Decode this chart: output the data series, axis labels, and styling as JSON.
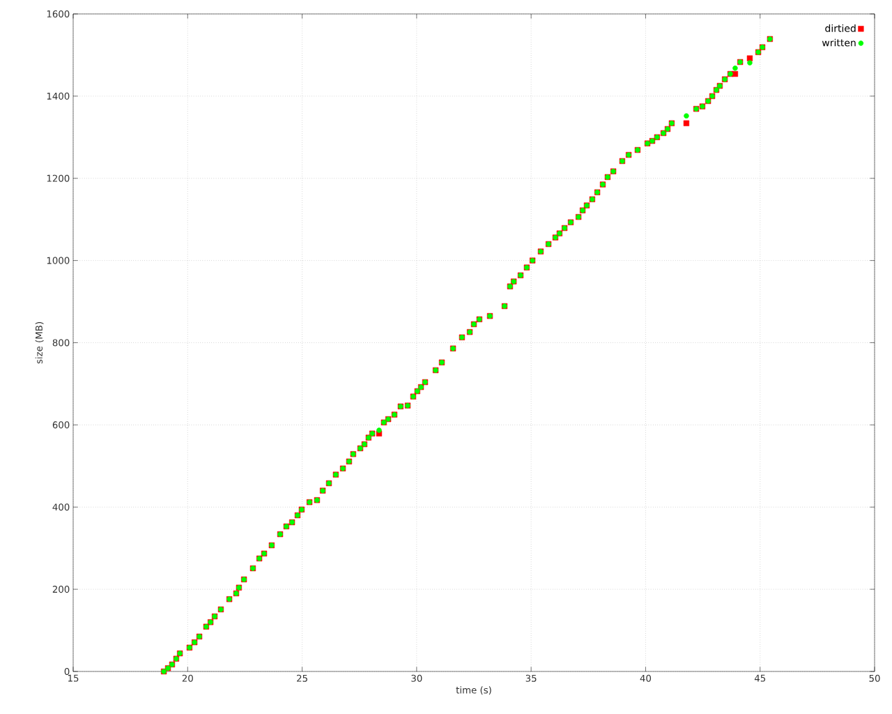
{
  "chart_data": {
    "type": "scatter",
    "xlabel": "time (s)",
    "ylabel": "size (MB)",
    "xlim": [
      15,
      50
    ],
    "ylim": [
      0,
      1600
    ],
    "xticks": [
      15,
      20,
      25,
      30,
      35,
      40,
      45,
      50
    ],
    "yticks": [
      0,
      200,
      400,
      600,
      800,
      1000,
      1200,
      1400,
      1600
    ],
    "grid": true,
    "legend": "top right",
    "x": [
      18.96,
      19.14,
      19.32,
      19.5,
      19.66,
      20.08,
      20.3,
      20.51,
      20.81,
      21.0,
      21.18,
      21.45,
      21.82,
      22.12,
      22.24,
      22.46,
      22.85,
      23.13,
      23.34,
      23.67,
      24.04,
      24.31,
      24.56,
      24.8,
      24.98,
      25.32,
      25.65,
      25.9,
      26.17,
      26.47,
      26.78,
      27.05,
      27.23,
      27.54,
      27.72,
      27.9,
      28.06,
      28.36,
      28.57,
      28.76,
      29.03,
      29.3,
      29.61,
      29.85,
      30.03,
      30.19,
      30.37,
      30.83,
      31.1,
      31.59,
      31.98,
      32.32,
      32.5,
      32.74,
      33.2,
      33.84,
      34.08,
      34.24,
      34.54,
      34.81,
      35.06,
      35.42,
      35.76,
      36.06,
      36.24,
      36.46,
      36.73,
      37.07,
      37.25,
      37.43,
      37.67,
      37.89,
      38.13,
      38.34,
      38.59,
      38.98,
      39.26,
      39.65,
      40.08,
      40.29,
      40.5,
      40.78,
      40.96,
      41.14,
      41.78,
      42.21,
      42.48,
      42.73,
      42.91,
      43.09,
      43.24,
      43.46,
      43.7,
      43.91,
      44.13,
      44.55,
      44.92,
      45.1,
      45.43
    ],
    "series": [
      {
        "name": "dirtied",
        "color": "#ff0000",
        "marker": "square",
        "values": [
          0,
          8,
          17,
          31,
          44,
          58,
          71,
          85,
          109,
          120,
          134,
          151,
          176,
          190,
          204,
          224,
          251,
          275,
          287,
          307,
          334,
          353,
          363,
          380,
          394,
          412,
          417,
          440,
          458,
          479,
          494,
          511,
          529,
          543,
          553,
          569,
          579,
          579,
          606,
          614,
          625,
          645,
          647,
          669,
          682,
          692,
          704,
          733,
          752,
          786,
          813,
          826,
          845,
          857,
          865,
          889,
          937,
          949,
          964,
          983,
          1000,
          1022,
          1040,
          1056,
          1066,
          1079,
          1093,
          1106,
          1122,
          1134,
          1149,
          1166,
          1185,
          1203,
          1217,
          1242,
          1257,
          1269,
          1285,
          1291,
          1300,
          1310,
          1320,
          1334,
          1334,
          1369,
          1375,
          1388,
          1400,
          1415,
          1425,
          1441,
          1454,
          1454,
          1483,
          1492,
          1507,
          1519,
          1539
        ]
      },
      {
        "name": "written",
        "color": "#00ff00",
        "marker": "circle",
        "values": [
          0,
          8,
          17,
          31,
          44,
          58,
          71,
          85,
          109,
          120,
          134,
          151,
          176,
          190,
          204,
          224,
          251,
          275,
          287,
          307,
          334,
          353,
          363,
          380,
          394,
          412,
          417,
          440,
          458,
          479,
          494,
          511,
          529,
          543,
          553,
          569,
          579,
          587,
          606,
          614,
          625,
          645,
          647,
          669,
          682,
          692,
          704,
          733,
          752,
          786,
          813,
          826,
          845,
          857,
          865,
          889,
          937,
          949,
          964,
          983,
          1000,
          1022,
          1040,
          1056,
          1066,
          1079,
          1093,
          1106,
          1122,
          1134,
          1149,
          1166,
          1185,
          1203,
          1217,
          1242,
          1257,
          1269,
          1285,
          1291,
          1300,
          1310,
          1320,
          1334,
          1352,
          1369,
          1375,
          1388,
          1400,
          1415,
          1425,
          1441,
          1454,
          1468,
          1483,
          1481,
          1507,
          1519,
          1539
        ]
      }
    ]
  }
}
